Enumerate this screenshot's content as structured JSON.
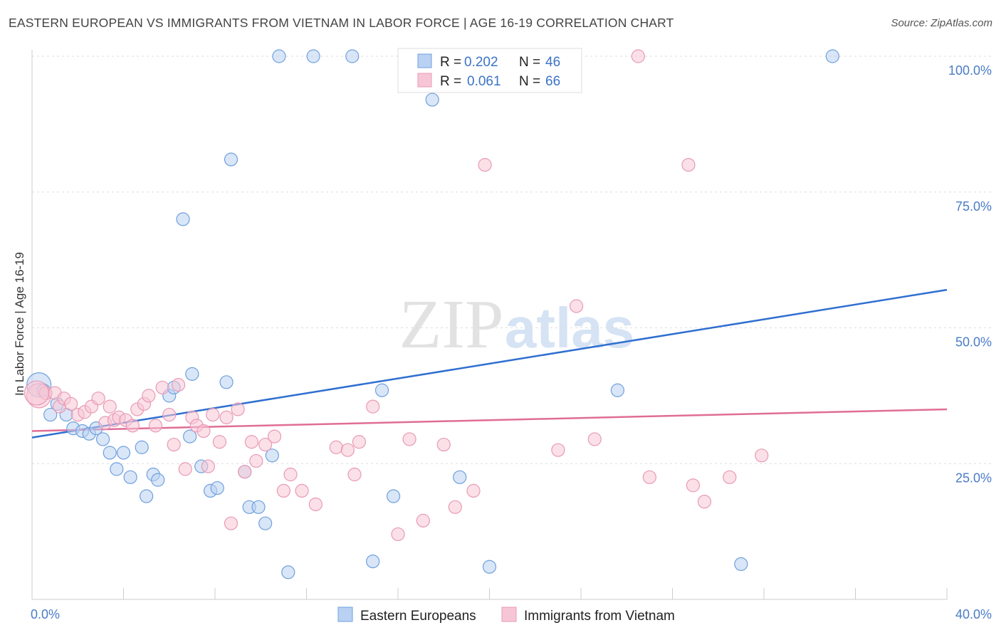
{
  "title": "EASTERN EUROPEAN VS IMMIGRANTS FROM VIETNAM IN LABOR FORCE | AGE 16-19 CORRELATION CHART",
  "source": "Source: ZipAtlas.com",
  "watermark": {
    "zip": "ZIP",
    "atlas": "atlas"
  },
  "chart_data": {
    "type": "scatter",
    "title": "EASTERN EUROPEAN VS IMMIGRANTS FROM VIETNAM IN LABOR FORCE | AGE 16-19 CORRELATION CHART",
    "xlabel": "",
    "ylabel": "In Labor Force | Age 16-19",
    "xlim": [
      0,
      40
    ],
    "ylim": [
      0,
      102
    ],
    "x_tick_labels": [
      "0.0%",
      "40.0%"
    ],
    "y_ticks": [
      25,
      50,
      75,
      100
    ],
    "y_tick_labels": [
      "25.0%",
      "50.0%",
      "75.0%",
      "100.0%"
    ],
    "grid": true,
    "legend": {
      "placement": "top-center",
      "rows": [
        {
          "r_label": "R =",
          "r_value": "0.202",
          "n_label": "N =",
          "n_value": "46"
        },
        {
          "r_label": "R =",
          "r_value": "0.061",
          "n_label": "N =",
          "n_value": "66"
        }
      ]
    },
    "series": [
      {
        "name": "Eastern Europeans",
        "color": "#6fa0dc",
        "fill": "#b9d1f2",
        "line_color": "#2f6fd0",
        "trend": {
          "x": [
            0,
            40
          ],
          "y": [
            29.8,
            57.0
          ]
        },
        "points": [
          [
            0.3,
            39.5
          ],
          [
            0.5,
            38.5
          ],
          [
            0.8,
            34.0
          ],
          [
            1.1,
            36.0
          ],
          [
            1.5,
            34.0
          ],
          [
            1.8,
            31.5
          ],
          [
            2.2,
            31.0
          ],
          [
            2.5,
            30.5
          ],
          [
            2.8,
            31.5
          ],
          [
            3.1,
            29.5
          ],
          [
            3.4,
            27.0
          ],
          [
            3.7,
            24.0
          ],
          [
            4.0,
            27.0
          ],
          [
            4.3,
            22.5
          ],
          [
            4.8,
            28.0
          ],
          [
            5.0,
            19.0
          ],
          [
            5.3,
            23.0
          ],
          [
            5.5,
            22.0
          ],
          [
            6.0,
            37.5
          ],
          [
            6.2,
            39.0
          ],
          [
            6.6,
            70.0
          ],
          [
            6.9,
            30.0
          ],
          [
            7.0,
            41.5
          ],
          [
            7.4,
            24.5
          ],
          [
            7.8,
            20.0
          ],
          [
            8.1,
            20.5
          ],
          [
            8.5,
            40.0
          ],
          [
            8.7,
            81.0
          ],
          [
            9.3,
            23.5
          ],
          [
            9.5,
            17.0
          ],
          [
            9.9,
            17.0
          ],
          [
            10.2,
            14.0
          ],
          [
            10.5,
            26.5
          ],
          [
            10.8,
            100.0
          ],
          [
            11.2,
            5.0
          ],
          [
            12.3,
            100.0
          ],
          [
            14.0,
            100.0
          ],
          [
            14.9,
            7.0
          ],
          [
            15.3,
            38.5
          ],
          [
            15.8,
            19.0
          ],
          [
            17.5,
            92.0
          ],
          [
            18.7,
            22.5
          ],
          [
            20.0,
            6.0
          ],
          [
            25.6,
            38.5
          ],
          [
            31.0,
            6.5
          ],
          [
            35.0,
            100.0
          ]
        ]
      },
      {
        "name": "Immigrants from Vietnam",
        "color": "#e89ab5",
        "fill": "#f7c6d6",
        "line_color": "#e06d95",
        "trend": {
          "x": [
            0,
            40
          ],
          "y": [
            31.0,
            35.0
          ]
        },
        "points": [
          [
            0.3,
            37.5
          ],
          [
            0.6,
            38.0
          ],
          [
            1.0,
            38.0
          ],
          [
            1.2,
            35.5
          ],
          [
            1.4,
            37.0
          ],
          [
            1.7,
            36.0
          ],
          [
            2.0,
            34.0
          ],
          [
            2.3,
            34.5
          ],
          [
            2.6,
            35.5
          ],
          [
            2.9,
            37.0
          ],
          [
            3.2,
            32.5
          ],
          [
            3.4,
            35.5
          ],
          [
            3.6,
            33.0
          ],
          [
            3.8,
            33.5
          ],
          [
            4.1,
            33.0
          ],
          [
            4.4,
            32.0
          ],
          [
            4.6,
            35.0
          ],
          [
            4.9,
            36.0
          ],
          [
            5.1,
            37.5
          ],
          [
            5.4,
            32.0
          ],
          [
            5.7,
            39.0
          ],
          [
            6.0,
            34.0
          ],
          [
            6.2,
            28.5
          ],
          [
            6.4,
            39.5
          ],
          [
            6.7,
            24.0
          ],
          [
            7.0,
            33.5
          ],
          [
            7.2,
            32.0
          ],
          [
            7.5,
            31.0
          ],
          [
            7.7,
            24.5
          ],
          [
            7.9,
            34.0
          ],
          [
            8.2,
            29.0
          ],
          [
            8.5,
            33.5
          ],
          [
            8.7,
            14.0
          ],
          [
            9.0,
            35.0
          ],
          [
            9.3,
            23.5
          ],
          [
            9.6,
            29.0
          ],
          [
            9.8,
            25.5
          ],
          [
            10.2,
            28.5
          ],
          [
            10.6,
            30.0
          ],
          [
            11.0,
            20.0
          ],
          [
            11.3,
            23.0
          ],
          [
            11.8,
            20.0
          ],
          [
            12.4,
            17.5
          ],
          [
            13.3,
            28.0
          ],
          [
            13.8,
            27.5
          ],
          [
            14.1,
            23.0
          ],
          [
            14.3,
            29.0
          ],
          [
            14.9,
            35.5
          ],
          [
            16.0,
            12.0
          ],
          [
            16.5,
            29.5
          ],
          [
            17.1,
            14.5
          ],
          [
            18.0,
            28.5
          ],
          [
            18.5,
            17.0
          ],
          [
            19.3,
            20.0
          ],
          [
            19.8,
            80.0
          ],
          [
            23.0,
            27.5
          ],
          [
            23.8,
            54.0
          ],
          [
            24.6,
            29.5
          ],
          [
            26.5,
            100.0
          ],
          [
            27.0,
            22.5
          ],
          [
            28.7,
            80.0
          ],
          [
            28.9,
            21.0
          ],
          [
            29.4,
            18.0
          ],
          [
            30.5,
            22.5
          ],
          [
            31.9,
            26.5
          ],
          [
            0.2,
            38.0
          ]
        ]
      }
    ]
  },
  "bottom_legend": [
    "Eastern Europeans",
    "Immigrants from Vietnam"
  ]
}
